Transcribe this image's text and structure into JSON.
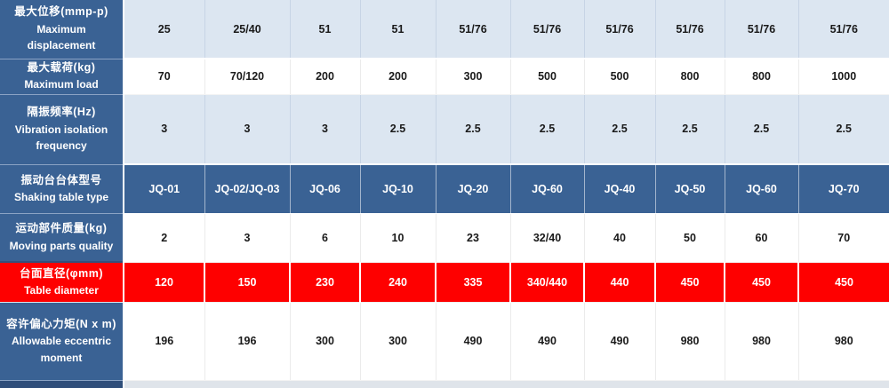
{
  "table": {
    "name": "shaking-table-specifications",
    "rows": [
      {
        "style": "light",
        "label_zh": "最大位移(mmp-p)",
        "label_en": "Maximum displacement",
        "values": [
          "25",
          "25/40",
          "51",
          "51",
          "51/76",
          "51/76",
          "51/76",
          "51/76",
          "51/76",
          "51/76"
        ]
      },
      {
        "style": "white",
        "label_zh": "最大载荷(kg)",
        "label_en": "Maximum load",
        "values": [
          "70",
          "70/120",
          "200",
          "200",
          "300",
          "500",
          "500",
          "800",
          "800",
          "1000"
        ]
      },
      {
        "style": "light",
        "label_zh": "隔振频率(Hz)",
        "label_en": "Vibration isolation frequency",
        "values": [
          "3",
          "3",
          "3",
          "2.5",
          "2.5",
          "2.5",
          "2.5",
          "2.5",
          "2.5",
          "2.5"
        ]
      },
      {
        "style": "blue",
        "label_zh": "振动台台体型号",
        "label_en": "Shaking table type",
        "values": [
          "JQ-01",
          "JQ-02/JQ-03",
          "JQ-06",
          "JQ-10",
          "JQ-20",
          "JQ-60",
          "JQ-40",
          "JQ-50",
          "JQ-60",
          "JQ-70"
        ]
      },
      {
        "style": "white",
        "label_zh": "运动部件质量(kg)",
        "label_en": "Moving parts quality",
        "values": [
          "2",
          "3",
          "6",
          "10",
          "23",
          "32/40",
          "40",
          "50",
          "60",
          "70"
        ]
      },
      {
        "style": "red",
        "label_zh": "台面直径(φmm)",
        "label_en": "Table diameter",
        "values": [
          "120",
          "150",
          "230",
          "240",
          "335",
          "340/440",
          "440",
          "450",
          "450",
          "450"
        ]
      },
      {
        "style": "white",
        "label_zh": "容许偏心力矩(N x m)",
        "label_en": "Allowable eccentric moment",
        "values": [
          "196",
          "196",
          "300",
          "300",
          "490",
          "490",
          "490",
          "980",
          "980",
          "980"
        ]
      },
      {
        "style": "sliver",
        "label_zh": "",
        "label_en": "",
        "values": []
      }
    ],
    "colors": {
      "header_blue": "#3a6294",
      "light_row": "#dce6f1",
      "red_row": "#fe0000",
      "white_row": "#ffffff",
      "sliver_header": "#2f4e7a",
      "sliver_data": "#dfe4ea",
      "text_dark": "#1a1a1a",
      "text_light": "#ffffff"
    }
  }
}
